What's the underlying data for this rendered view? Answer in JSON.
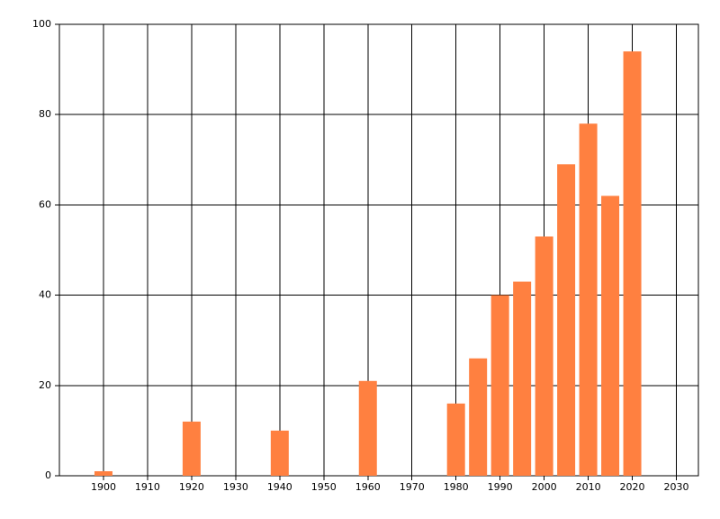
{
  "chart_data": {
    "type": "bar",
    "x": [
      1900,
      1920,
      1940,
      1960,
      1980,
      1985,
      1990,
      1995,
      2000,
      2005,
      2010,
      2015,
      2020
    ],
    "values": [
      1,
      12,
      10,
      21,
      16,
      26,
      40,
      43,
      53,
      69,
      78,
      62,
      94
    ],
    "color": "#ff8040",
    "xlim": [
      1890,
      2035
    ],
    "xticks": [
      1900,
      1910,
      1920,
      1930,
      1940,
      1950,
      1960,
      1970,
      1980,
      1990,
      2000,
      2010,
      2020,
      2030
    ],
    "ylim": [
      0,
      100
    ],
    "yticks": [
      0,
      20,
      40,
      60,
      80,
      100
    ],
    "grid": true
  }
}
